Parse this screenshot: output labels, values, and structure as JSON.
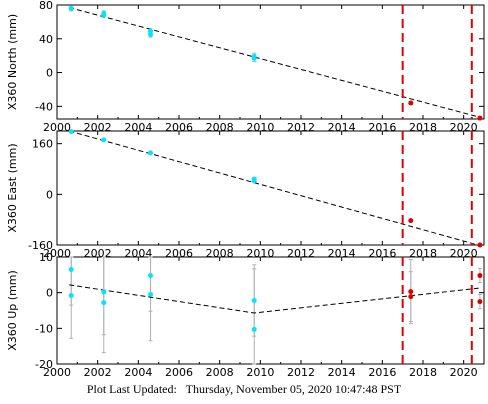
{
  "footer": {
    "label": "Plot Last Updated:",
    "timestamp": "Thursday, November 05, 2020 10:47:48 PST"
  },
  "colors": {
    "pre_points": "#00e5ff",
    "post_points": "#dd0000",
    "event_lines": "#e00000",
    "error_bars": "#b0b0b0",
    "trend": "#000000"
  },
  "chart_data": [
    {
      "type": "scatter",
      "ylabel": "X360 North (mm)",
      "xlim": [
        2000,
        2021
      ],
      "ylim": [
        -55,
        80
      ],
      "x_ticks": [
        2000,
        2002,
        2004,
        2006,
        2008,
        2010,
        2012,
        2014,
        2016,
        2018,
        2020
      ],
      "x_tick_labels": [
        "2000",
        "2002",
        "2004",
        "2006",
        "2008",
        "2010",
        "2012",
        "2014",
        "2016",
        "2018",
        "2020"
      ],
      "y_ticks": [
        -40,
        0,
        40,
        80
      ],
      "y_tick_labels": [
        "-40",
        "0",
        "40",
        "80"
      ],
      "event_lines_x": [
        2017.0,
        2020.4
      ],
      "trend": [
        [
          2000.6,
          77
        ],
        [
          2020.8,
          -53
        ]
      ],
      "series": [
        {
          "color": "cyan",
          "points": [
            {
              "x": 2000.7,
              "y": 76,
              "err": 3
            },
            {
              "x": 2002.3,
              "y": 70,
              "err": 3
            },
            {
              "x": 2002.3,
              "y": 68,
              "err": 3
            },
            {
              "x": 2004.6,
              "y": 49,
              "err": 3
            },
            {
              "x": 2004.6,
              "y": 45,
              "err": 3
            },
            {
              "x": 2009.7,
              "y": 19,
              "err": 4
            },
            {
              "x": 2009.7,
              "y": 17,
              "err": 4
            }
          ]
        },
        {
          "color": "red",
          "points": [
            {
              "x": 2017.4,
              "y": -36,
              "err": 2
            },
            {
              "x": 2020.8,
              "y": -54,
              "err": 2
            }
          ]
        }
      ]
    },
    {
      "type": "scatter",
      "ylabel": "X360 East (mm)",
      "xlim": [
        2000,
        2021
      ],
      "ylim": [
        -160,
        200
      ],
      "x_ticks": [
        2000,
        2002,
        2004,
        2006,
        2008,
        2010,
        2012,
        2014,
        2016,
        2018,
        2020
      ],
      "x_tick_labels": [
        "2000",
        "2002",
        "2004",
        "2006",
        "2008",
        "2010",
        "2012",
        "2014",
        "2016",
        "2018",
        "2020"
      ],
      "y_ticks": [
        -160,
        0,
        160
      ],
      "y_tick_labels": [
        "-160",
        "0",
        "160"
      ],
      "event_lines_x": [
        2017.0,
        2020.4
      ],
      "trend": [
        [
          2000.6,
          200
        ],
        [
          2020.8,
          -162
        ]
      ],
      "series": [
        {
          "color": "cyan",
          "points": [
            {
              "x": 2000.7,
              "y": 198,
              "err": 3
            },
            {
              "x": 2002.3,
              "y": 172,
              "err": 3
            },
            {
              "x": 2004.6,
              "y": 131,
              "err": 3
            },
            {
              "x": 2009.7,
              "y": 48,
              "err": 4
            },
            {
              "x": 2009.7,
              "y": 43,
              "err": 4
            }
          ]
        },
        {
          "color": "red",
          "points": [
            {
              "x": 2017.4,
              "y": -83,
              "err": 3
            },
            {
              "x": 2020.8,
              "y": -160,
              "err": 3
            }
          ]
        }
      ]
    },
    {
      "type": "scatter",
      "ylabel": "X360 Up (mm)",
      "xlim": [
        2000,
        2021
      ],
      "ylim": [
        -20,
        10
      ],
      "x_ticks": [
        2000,
        2002,
        2004,
        2006,
        2008,
        2010,
        2012,
        2014,
        2016,
        2018,
        2020
      ],
      "x_tick_labels": [
        "2000",
        "2002",
        "2004",
        "2006",
        "2008",
        "2010",
        "2012",
        "2014",
        "2016",
        "2018",
        "2020"
      ],
      "y_ticks": [
        -20,
        -10,
        0,
        10
      ],
      "y_tick_labels": [
        "-20",
        "-10",
        "0",
        "10"
      ],
      "event_lines_x": [
        2017.0,
        2020.4
      ],
      "trend": [
        [
          2000.6,
          2.2
        ],
        [
          2009.7,
          -5.7
        ],
        [
          2020.8,
          1.3
        ]
      ],
      "series": [
        {
          "color": "cyan",
          "points": [
            {
              "x": 2000.7,
              "y": 6.5,
              "err": 10
            },
            {
              "x": 2000.7,
              "y": -0.8,
              "err": 12
            },
            {
              "x": 2002.3,
              "y": 0.2,
              "err": 12
            },
            {
              "x": 2002.3,
              "y": -2.8,
              "err": 14
            },
            {
              "x": 2004.6,
              "y": 4.8,
              "err": 10
            },
            {
              "x": 2004.6,
              "y": -0.5,
              "err": 13
            },
            {
              "x": 2009.7,
              "y": -2.2,
              "err": 10
            },
            {
              "x": 2009.7,
              "y": -10.3,
              "err": 17
            }
          ]
        },
        {
          "color": "red",
          "points": [
            {
              "x": 2017.4,
              "y": 0.3,
              "err": 9
            },
            {
              "x": 2017.4,
              "y": -1.1,
              "err": 7
            },
            {
              "x": 2020.8,
              "y": 4.8,
              "err": 2
            },
            {
              "x": 2020.8,
              "y": -2.5,
              "err": 2
            }
          ]
        }
      ]
    }
  ]
}
